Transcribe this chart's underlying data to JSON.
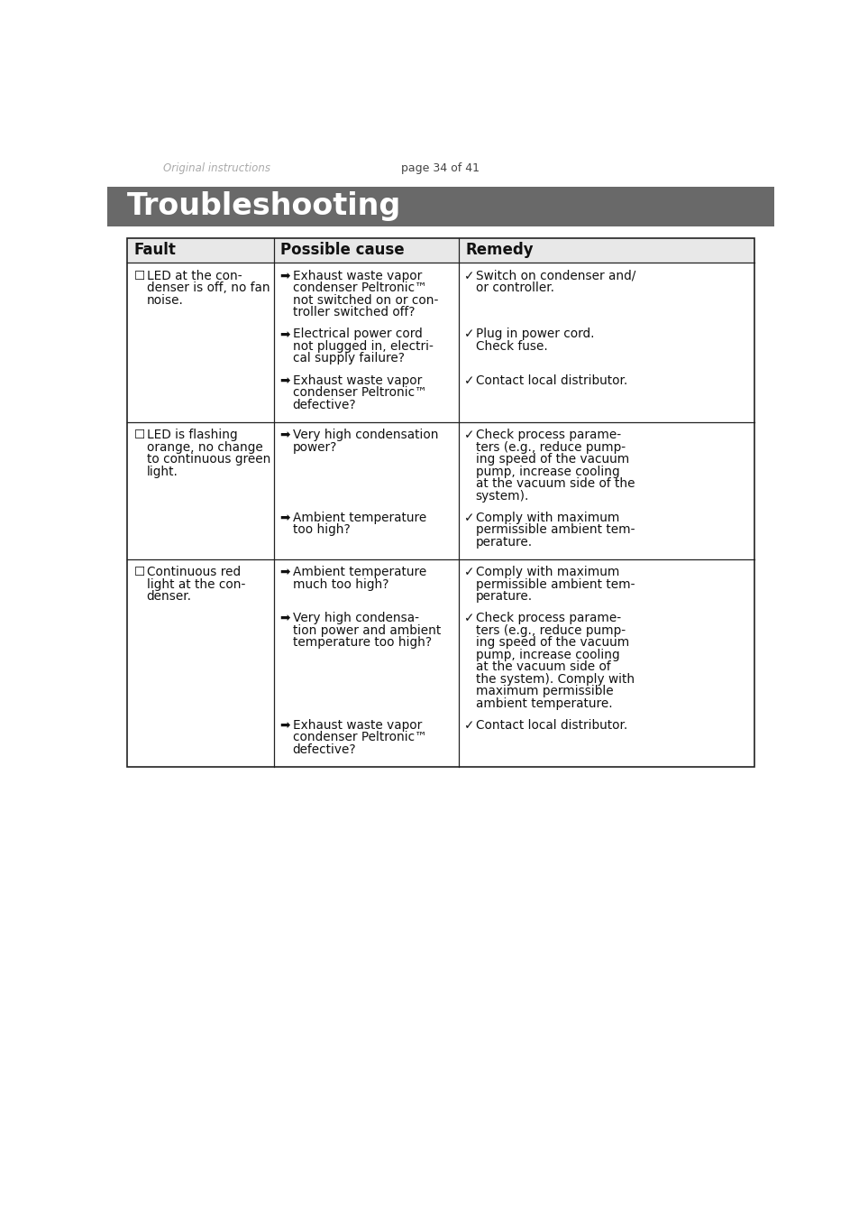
{
  "page_header_left": "Original instructions",
  "page_header_center": "page 34 of 41",
  "section_title": "Troubleshooting",
  "section_bg": "#696969",
  "section_text_color": "#ffffff",
  "table_header_bg": "#e8e8e8",
  "table_border_color": "#222222",
  "col_headers": [
    "Fault",
    "Possible cause",
    "Remedy"
  ],
  "rows": [
    {
      "fault_lines": [
        "☐  LED at the con-",
        "    denser is off, no fan",
        "    noise."
      ],
      "cause_blocks": [
        [
          "Exhaust waste vapor",
          "condenser Peltronic™",
          "not switched on or con-",
          "troller switched off?"
        ],
        [
          "Electrical power cord",
          "not plugged in, electri-",
          "cal supply failure?"
        ],
        [
          "Exhaust waste vapor",
          "condenser Peltronic™",
          "defective?"
        ]
      ],
      "remedy_blocks": [
        [
          "Switch on condenser and/",
          "or controller."
        ],
        [
          "Plug in power cord.",
          "Check fuse."
        ],
        [
          "Contact local distributor."
        ]
      ]
    },
    {
      "fault_lines": [
        "☐  LED is flashing",
        "    orange, no change",
        "    to continuous green",
        "    light."
      ],
      "cause_blocks": [
        [
          "Very high condensation",
          "power?"
        ],
        [
          "Ambient temperature",
          "too high?"
        ]
      ],
      "remedy_blocks": [
        [
          "Check process parame-",
          "ters (e.g., reduce pump-",
          "ing speed of the vacuum",
          "pump, increase cooling",
          "at the vacuum side of the",
          "system)."
        ],
        [
          "Comply with maximum",
          "permissible ambient tem-",
          "perature."
        ]
      ]
    },
    {
      "fault_lines": [
        "☐  Continuous red",
        "    light at the con-",
        "    denser."
      ],
      "cause_blocks": [
        [
          "Ambient temperature",
          "much too high?"
        ],
        [
          "Very high condensa-",
          "tion power and ambient",
          "temperature too high?"
        ],
        [
          "Exhaust waste vapor",
          "condenser Peltronic™",
          "defective?"
        ]
      ],
      "remedy_blocks": [
        [
          "Comply with maximum",
          "permissible ambient tem-",
          "perature."
        ],
        [
          "Check process parame-",
          "ters (e.g., reduce pump-",
          "ing speed of the vacuum",
          "pump, increase cooling",
          "at the vacuum side of",
          "the system). Comply with",
          "maximum permissible",
          "ambient temperature."
        ],
        [
          "Contact local distributor."
        ]
      ]
    }
  ]
}
